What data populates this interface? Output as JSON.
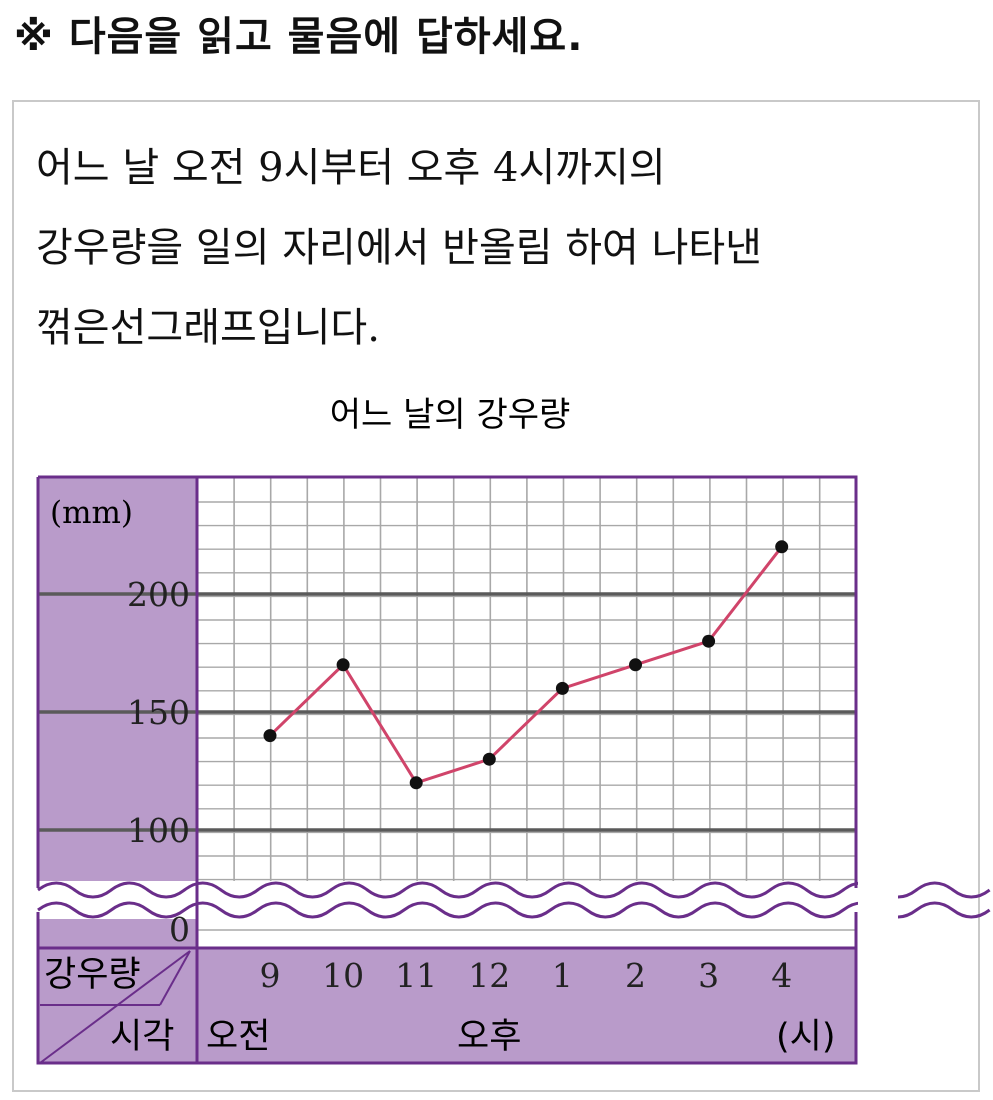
{
  "instruction": "※ 다음을 읽고 물음에 답하세요.",
  "description": {
    "line1": "어느 날 오전 9시부터 오후 4시까지의",
    "line2": "강우량을 일의 자리에서 반올림 하여 나타낸",
    "line3": "꺾은선그래프입니다."
  },
  "colors": {
    "frame": "#6a2e8a",
    "label_fill": "#b99bca",
    "line": "#d0446a",
    "point": "#111111",
    "grid": "#a8a8a8",
    "major_grid": "#5a5a5a"
  },
  "chart_data": {
    "type": "line",
    "title": "어느 날의 강우량",
    "unit_label": "(mm)",
    "ylim": [
      90,
      230
    ],
    "y_ticks": [
      0,
      100,
      150,
      200
    ],
    "axis_break": true,
    "categories": [
      "9",
      "10",
      "11",
      "12",
      "1",
      "2",
      "3",
      "4"
    ],
    "values": [
      140,
      170,
      120,
      130,
      160,
      170,
      180,
      220
    ],
    "corner_top_label": "강우량",
    "corner_bottom_label": "시각",
    "period_labels": [
      "오전",
      "오후"
    ],
    "time_unit": "(시)",
    "grid": true
  }
}
